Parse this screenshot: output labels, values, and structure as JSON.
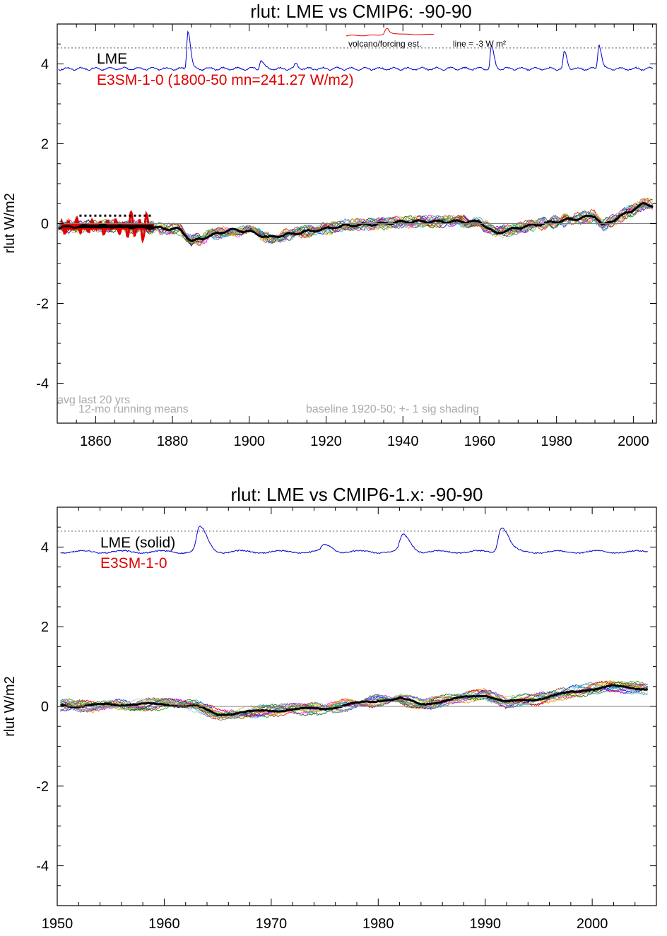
{
  "chart_data": [
    {
      "type": "line",
      "title": "rlut: LME vs CMIP6: -90-90",
      "xlabel": "",
      "ylabel": "rlut W/m2",
      "xlim": [
        1850,
        2006
      ],
      "ylim": [
        -5,
        5
      ],
      "xticks": [
        1860,
        1880,
        1900,
        1920,
        1940,
        1960,
        1980,
        2000
      ],
      "yticks": [
        -4,
        -2,
        0,
        2,
        4
      ],
      "grid": false,
      "zero_line": 0,
      "dotted_reference": 4.4,
      "dotted_reference_label": "line = -3 W m²",
      "legend": [
        "LME",
        "E3SM-1-0 (1800-50 mn=241.27 W/m2)"
      ],
      "legend_position": "top-left",
      "inset_label": "volcano/forcing est.",
      "annotations": [
        "avg last 20 yrs",
        "12-mo running means",
        "baseline 1920-50; +- 1 sig shading"
      ],
      "forcing_peaks": [
        [
          1884,
          4.85
        ],
        [
          1903,
          4.1
        ],
        [
          1912,
          4.0
        ],
        [
          1963,
          4.45
        ],
        [
          1982,
          4.3
        ],
        [
          1991,
          4.5
        ]
      ],
      "forcing_base": 3.88,
      "ensemble_series": [
        {
          "x": 1850,
          "y": -0.1
        },
        {
          "x": 1860,
          "y": -0.05
        },
        {
          "x": 1875,
          "y": -0.1
        },
        {
          "x": 1882,
          "y": -0.15
        },
        {
          "x": 1885,
          "y": -0.45
        },
        {
          "x": 1890,
          "y": -0.3
        },
        {
          "x": 1895,
          "y": -0.15
        },
        {
          "x": 1900,
          "y": -0.2
        },
        {
          "x": 1905,
          "y": -0.35
        },
        {
          "x": 1915,
          "y": -0.2
        },
        {
          "x": 1925,
          "y": -0.05
        },
        {
          "x": 1935,
          "y": 0.0
        },
        {
          "x": 1940,
          "y": 0.05
        },
        {
          "x": 1950,
          "y": 0.05
        },
        {
          "x": 1960,
          "y": 0.05
        },
        {
          "x": 1964,
          "y": -0.25
        },
        {
          "x": 1970,
          "y": -0.1
        },
        {
          "x": 1980,
          "y": 0.05
        },
        {
          "x": 1990,
          "y": 0.2
        },
        {
          "x": 1992,
          "y": -0.05
        },
        {
          "x": 2000,
          "y": 0.35
        },
        {
          "x": 2003,
          "y": 0.5
        },
        {
          "x": 2005,
          "y": 0.45
        }
      ],
      "model_segment": {
        "x0": 1851,
        "x1": 1875,
        "y": -0.07,
        "wiggle_max": 0.4,
        "avg_dotted_y": 0.2
      },
      "series_colors": {
        "lme_forcing": "#0000cc",
        "e3sm": "#e00000",
        "mean": "#000000",
        "zero": "#7f7f7f"
      }
    },
    {
      "type": "line",
      "title": "rlut: LME vs CMIP6-1.x: -90-90",
      "xlabel": "",
      "ylabel": "rlut W/m2",
      "xlim": [
        1950,
        2006
      ],
      "ylim": [
        -5,
        5
      ],
      "xticks": [
        1950,
        1960,
        1970,
        1980,
        1990,
        2000
      ],
      "yticks": [
        -4,
        -2,
        0,
        2,
        4
      ],
      "grid": false,
      "zero_line": 0,
      "dotted_reference": 4.4,
      "legend": [
        "LME (solid)",
        "E3SM-1-0"
      ],
      "legend_position": "top-left",
      "forcing_peaks": [
        [
          1963.3,
          4.5
        ],
        [
          1975,
          4.05
        ],
        [
          1982.3,
          4.3
        ],
        [
          1991.5,
          4.5
        ]
      ],
      "forcing_base": 3.88,
      "ensemble_series": [
        {
          "x": 1950,
          "y": 0.05
        },
        {
          "x": 1952,
          "y": 0.0
        },
        {
          "x": 1955,
          "y": 0.05
        },
        {
          "x": 1960,
          "y": 0.05
        },
        {
          "x": 1963,
          "y": 0.0
        },
        {
          "x": 1965,
          "y": -0.2
        },
        {
          "x": 1970,
          "y": -0.1
        },
        {
          "x": 1975,
          "y": -0.05
        },
        {
          "x": 1980,
          "y": 0.15
        },
        {
          "x": 1982,
          "y": 0.2
        },
        {
          "x": 1984,
          "y": 0.05
        },
        {
          "x": 1990,
          "y": 0.3
        },
        {
          "x": 1992,
          "y": 0.1
        },
        {
          "x": 1995,
          "y": 0.2
        },
        {
          "x": 2000,
          "y": 0.45
        },
        {
          "x": 2002,
          "y": 0.5
        },
        {
          "x": 2005,
          "y": 0.45
        }
      ],
      "series_colors": {
        "lme_forcing": "#0000cc",
        "e3sm": "#e00000",
        "mean": "#000000",
        "zero": "#7f7f7f"
      }
    }
  ]
}
